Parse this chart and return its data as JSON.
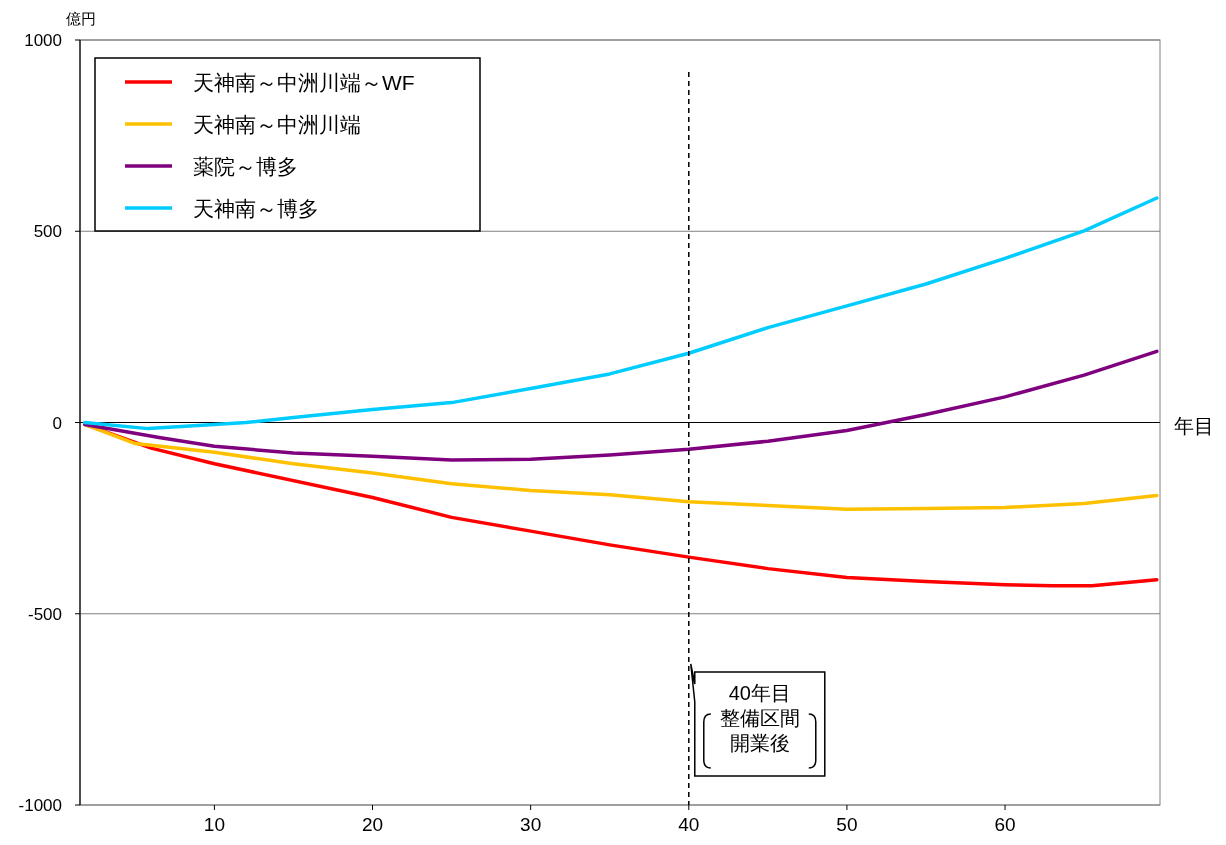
{
  "chart_data": {
    "type": "line",
    "ylabel": "億円",
    "xlabel": "年目",
    "xlim": [
      1.5,
      69.8
    ],
    "ylim": [
      -1000,
      1000
    ],
    "xticks": [
      10,
      20,
      30,
      40,
      50,
      60
    ],
    "yticks": [
      -1000,
      -500,
      0,
      500,
      1000
    ],
    "grid": "y",
    "legend": "top left",
    "marker": "none",
    "line_style": "solid",
    "ref_lines": [
      {
        "axis": "x",
        "value": 40,
        "label": "40年目整備区間開業後",
        "color": "#000000",
        "line_style": "dashed"
      }
    ],
    "series": [
      {
        "name": "天神南～中洲川端～WF",
        "color": "#ff0000",
        "x": [
          1.8,
          6,
          10,
          20,
          25,
          30,
          35,
          40,
          45,
          50,
          55,
          60,
          63,
          65.5,
          69.6
        ],
        "values": [
          -5,
          -67,
          -108,
          -196,
          -248,
          -284,
          -320,
          -352,
          -382,
          -405,
          -416,
          -424,
          -427,
          -427,
          -411
        ]
      },
      {
        "name": "天神南～中洲川端",
        "color": "#ffc000",
        "x": [
          1.8,
          5,
          10,
          15,
          20,
          25,
          30,
          35,
          40,
          45,
          50,
          55,
          60,
          65,
          69.6
        ],
        "values": [
          -5,
          -55,
          -78,
          -108,
          -132,
          -160,
          -178,
          -189,
          -207,
          -217,
          -227,
          -225,
          -222,
          -212,
          -191
        ]
      },
      {
        "name": "薬院～博多",
        "color": "#7f007f",
        "x": [
          1.8,
          6.5,
          10,
          15,
          20,
          25,
          30,
          35,
          40,
          45,
          50,
          52.5,
          55,
          60,
          65,
          69.6
        ],
        "values": [
          -5,
          -39,
          -62,
          -80,
          -88,
          -98,
          -96,
          -85,
          -70,
          -49,
          -21,
          0,
          21,
          67,
          124,
          186
        ]
      },
      {
        "name": "天神南～博多",
        "color": "#00ccff",
        "x": [
          1.8,
          5.8,
          10,
          12,
          15,
          20,
          25,
          30,
          35,
          40,
          45,
          50,
          55,
          60,
          65,
          69.6
        ],
        "values": [
          0,
          -16,
          -5,
          0,
          13,
          34,
          52,
          89,
          127,
          181,
          248,
          305,
          362,
          429,
          501,
          587
        ]
      }
    ]
  }
}
